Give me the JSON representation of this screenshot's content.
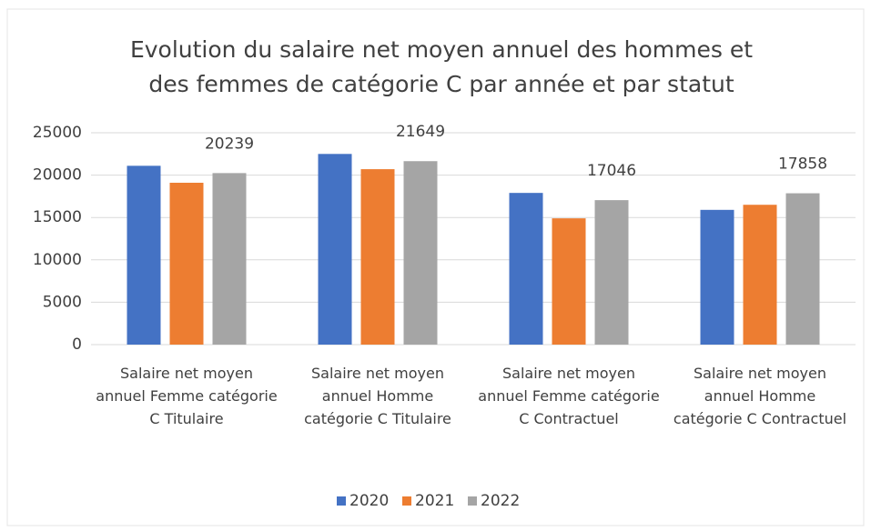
{
  "chart_data": {
    "type": "bar",
    "title": "Evolution du salaire net moyen annuel des hommes et des femmes de catégorie C par année et par statut",
    "categories": [
      "Salaire net moyen annuel Femme catégorie C Titulaire",
      "Salaire net moyen annuel Homme catégorie C Titulaire",
      "Salaire net moyen annuel Femme catégorie C Contractuel",
      "Salaire net moyen annuel Homme catégorie C Contractuel"
    ],
    "series": [
      {
        "name": "2020",
        "color": "#4472c4",
        "values": [
          21100,
          22500,
          17900,
          15900
        ],
        "data_labels": false
      },
      {
        "name": "2021",
        "color": "#ed7d31",
        "values": [
          19100,
          20700,
          14900,
          16500
        ],
        "data_labels": false
      },
      {
        "name": "2022",
        "color": "#a5a5a5",
        "values": [
          20239,
          21649,
          17046,
          17858
        ],
        "data_labels": true
      }
    ],
    "ylim": [
      0,
      25000
    ],
    "yticks": [
      0,
      5000,
      10000,
      15000,
      20000,
      25000
    ],
    "grid": true,
    "legend": "bottom"
  }
}
